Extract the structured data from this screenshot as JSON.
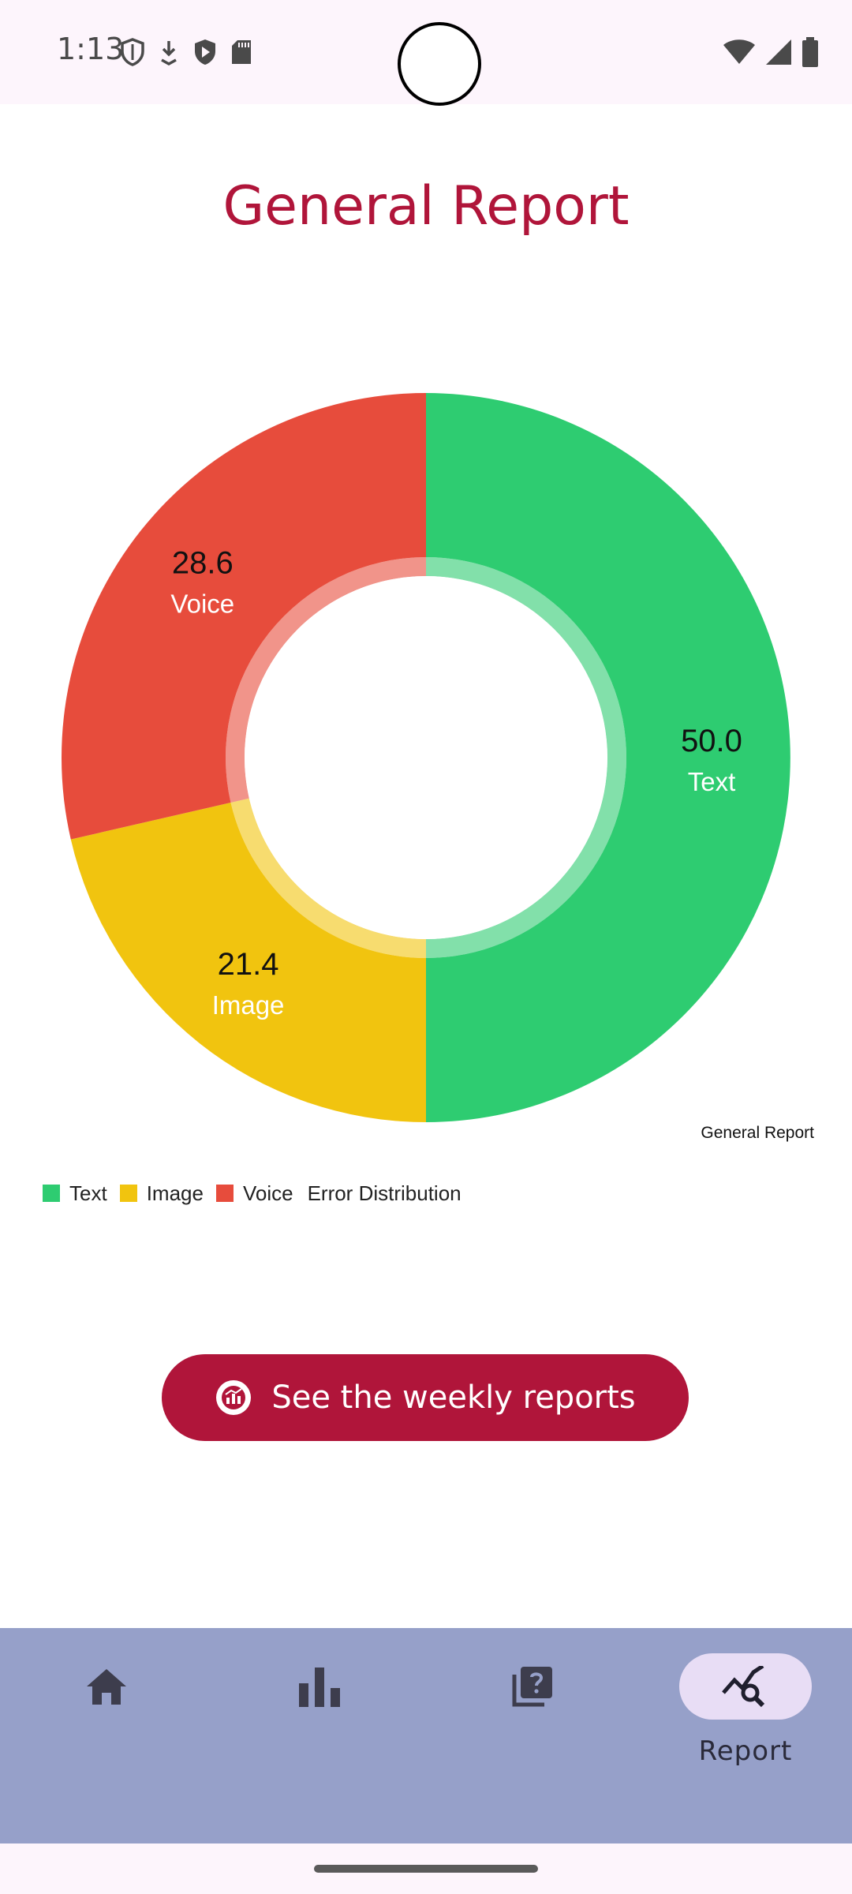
{
  "status_bar": {
    "time": "1:13",
    "left_icons": [
      "shield-outline-icon",
      "download-arrow-icon",
      "play-shield-icon",
      "sd-card-icon"
    ],
    "right_icons": [
      "wifi-icon",
      "signal-icon",
      "battery-icon"
    ]
  },
  "page": {
    "title": "General Report"
  },
  "chart_data": {
    "type": "pie",
    "subtype": "donut",
    "description_label": "General Report",
    "legend_description": "Error Distribution",
    "legend_position": "bottom-left",
    "slices": [
      {
        "label": "Text",
        "value": 50.0,
        "value_text": "50.0",
        "color": "#2ecc71"
      },
      {
        "label": "Image",
        "value": 21.4,
        "value_text": "21.4",
        "color": "#f1c40f"
      },
      {
        "label": "Voice",
        "value": 28.6,
        "value_text": "28.6",
        "color": "#e74c3c"
      }
    ]
  },
  "actions": {
    "weekly_button_label": "See the weekly reports",
    "weekly_button_icon": "report-badge-icon"
  },
  "bottom_nav": {
    "items": [
      {
        "id": "home",
        "icon": "home-icon",
        "label": "",
        "active": false
      },
      {
        "id": "stats",
        "icon": "bar-chart-icon",
        "label": "",
        "active": false
      },
      {
        "id": "quiz",
        "icon": "question-library-icon",
        "label": "",
        "active": false
      },
      {
        "id": "report",
        "icon": "trend-search-icon",
        "label": "Report",
        "active": true
      }
    ]
  },
  "colors": {
    "accent": "#b0153a",
    "nav_background": "#96a0c9",
    "nav_active_pill": "#e8ddf5"
  }
}
